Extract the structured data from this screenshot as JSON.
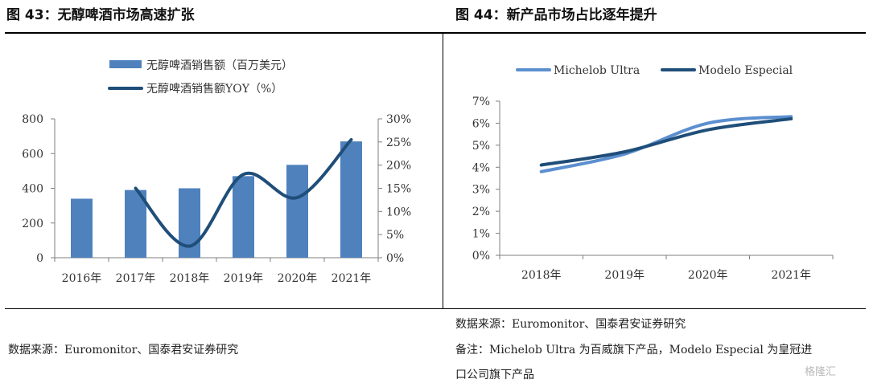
{
  "left": {
    "title": "图 43：无醇啤酒市场高速扩张",
    "source": "数据来源：Euromonitor、国泰君安证券研究"
  },
  "right": {
    "title": "图 44：新产品市场占比逐年提升",
    "source": "数据来源：Euromonitor、国泰君安证券研究",
    "note_line1": "备注：Michelob Ultra 为百威旗下产品，Modelo Especial 为皇冠进",
    "note_line2": "口公司旗下产品"
  },
  "watermark": "格隆汇",
  "colors": {
    "bar": "#4f81bd",
    "line_dark": "#1f4e79",
    "line_light": "#5b8fcf",
    "axis": "#7f7f7f"
  },
  "chart_data": [
    {
      "type": "bar",
      "categories": [
        "2016年",
        "2017年",
        "2018年",
        "2019年",
        "2020年",
        "2021年"
      ],
      "series": [
        {
          "name": "无醇啤酒销售额（百万美元）",
          "type": "bar",
          "axis": "left",
          "values": [
            340,
            390,
            400,
            470,
            535,
            670
          ]
        },
        {
          "name": "无醇啤酒销售额YOY（%）",
          "type": "line",
          "axis": "right",
          "values": [
            null,
            15.0,
            2.5,
            18.0,
            13.0,
            25.5
          ]
        }
      ],
      "ylim_left": [
        0,
        800
      ],
      "yticks_left": [
        "0",
        "200",
        "400",
        "600",
        "800"
      ],
      "ylim_right": [
        0,
        30
      ],
      "yticks_right": [
        "0%",
        "5%",
        "10%",
        "15%",
        "20%",
        "25%",
        "30%"
      ],
      "legend_position": "top"
    },
    {
      "type": "line",
      "categories": [
        "2018年",
        "2019年",
        "2020年",
        "2021年"
      ],
      "series": [
        {
          "name": "Michelob Ultra",
          "values": [
            3.8,
            4.6,
            6.0,
            6.3
          ]
        },
        {
          "name": "Modelo Especial",
          "values": [
            4.1,
            4.7,
            5.7,
            6.2
          ]
        }
      ],
      "ylim": [
        0,
        7
      ],
      "yticks": [
        "0%",
        "1%",
        "2%",
        "3%",
        "4%",
        "5%",
        "6%",
        "7%"
      ],
      "legend_position": "top"
    }
  ]
}
